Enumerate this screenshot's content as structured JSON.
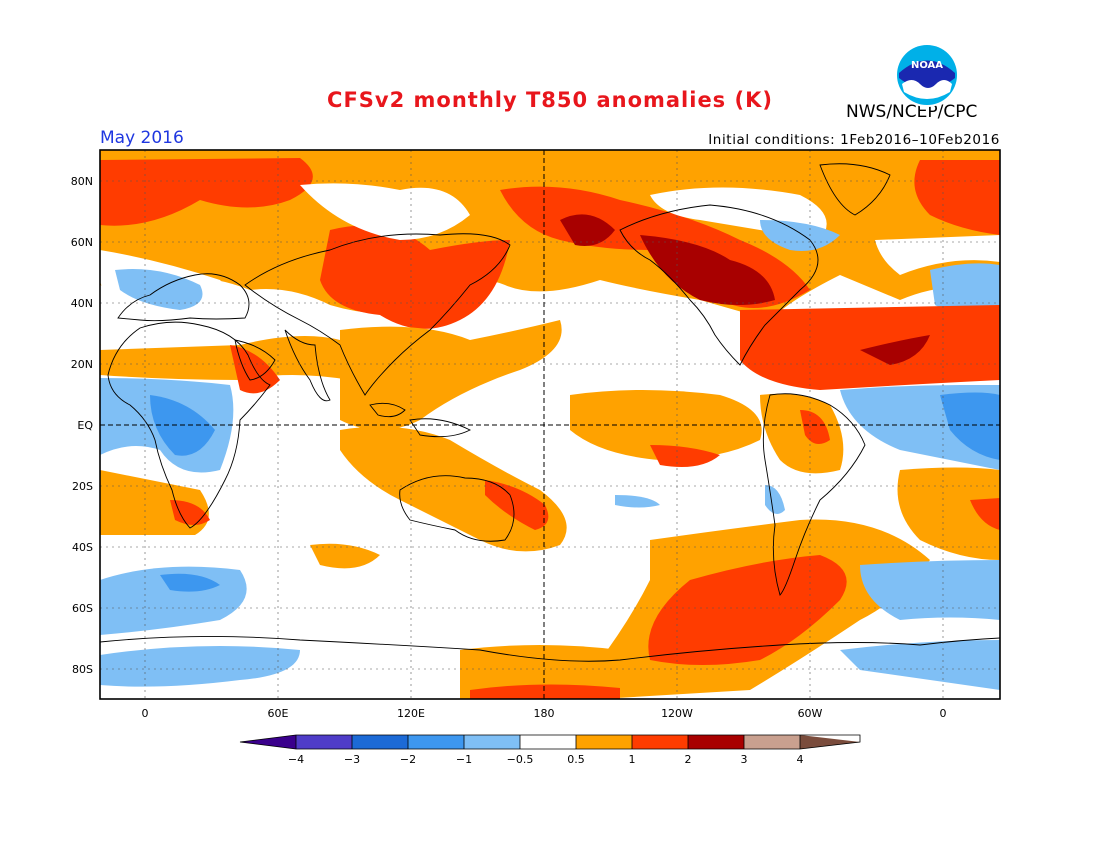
{
  "header": {
    "title": "CFSv2 monthly T850 anomalies (K)",
    "month": "May 2016",
    "initial_conditions": "Initial conditions: 1Feb2016–10Feb2016",
    "org": "NWS/NCEP/CPC",
    "logo_text": "NOAA"
  },
  "map": {
    "projection": "equirectangular",
    "lon_range": [
      -20,
      380
    ],
    "lat_range": [
      -90,
      90
    ],
    "lat_ticks": [
      "80N",
      "60N",
      "40N",
      "20N",
      "EQ",
      "20S",
      "40S",
      "60S",
      "80S"
    ],
    "lon_ticks": [
      "0",
      "60E",
      "120E",
      "180",
      "120W",
      "60W",
      "0"
    ]
  },
  "legend": {
    "labels": [
      "−4",
      "−3",
      "−2",
      "−1",
      "−0.5",
      "0.5",
      "1",
      "2",
      "3",
      "4"
    ],
    "colors": [
      "#3a008c",
      "#4f3cc8",
      "#1c6ad6",
      "#3d97ef",
      "#7fbff5",
      "#ffffff",
      "#ffa200",
      "#ff3c00",
      "#a80000",
      "#c9a08f",
      "#7a4c3c"
    ]
  },
  "colors": {
    "white": "#ffffff",
    "pos_05_1": "#ffa200",
    "pos_1_2": "#ff3c00",
    "pos_2_3": "#a80000",
    "neg_05_1": "#7fbff5",
    "neg_1_2": "#3d97ef"
  }
}
